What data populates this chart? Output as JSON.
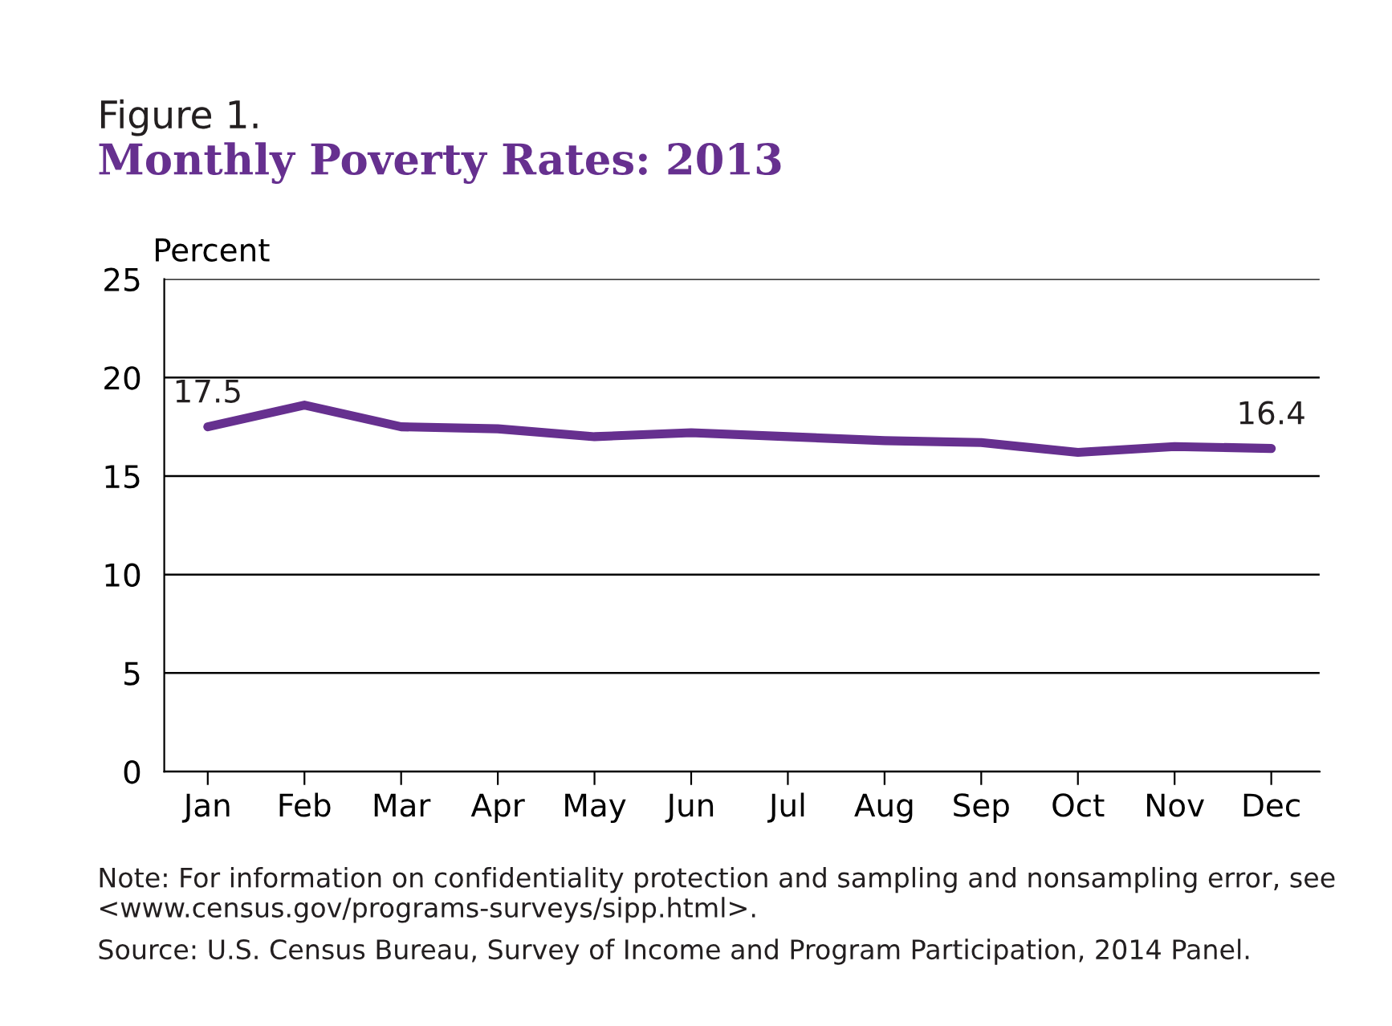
{
  "chart_data": {
    "type": "line",
    "title": "Figure 1.",
    "subtitle": "Monthly Poverty Rates: 2013",
    "ylabel": "Percent",
    "categories": [
      "Jan",
      "Feb",
      "Mar",
      "Apr",
      "May",
      "Jun",
      "Jul",
      "Aug",
      "Sep",
      "Oct",
      "Nov",
      "Dec"
    ],
    "series": [
      {
        "color": "#66308f",
        "values": [
          17.5,
          18.6,
          17.5,
          17.4,
          17.0,
          17.2,
          17.0,
          16.8,
          16.7,
          16.2,
          16.5,
          16.4
        ],
        "value_labels": [
          "17.5",
          null,
          null,
          null,
          null,
          null,
          null,
          null,
          null,
          null,
          null,
          "16.4"
        ]
      }
    ],
    "ylim": [
      0,
      25
    ],
    "yticks": [
      0,
      5,
      10,
      15,
      20,
      25
    ],
    "grid": "y",
    "marker": "none",
    "line_style": "solid",
    "annotations": [
      "Note: For information on confidentiality protection and sampling and nonsampling error, see <www.census.gov/programs-surveys/sipp.html>.",
      "Source: U.S. Census Bureau, Survey of Income and Program Participation, 2014 Panel."
    ]
  }
}
